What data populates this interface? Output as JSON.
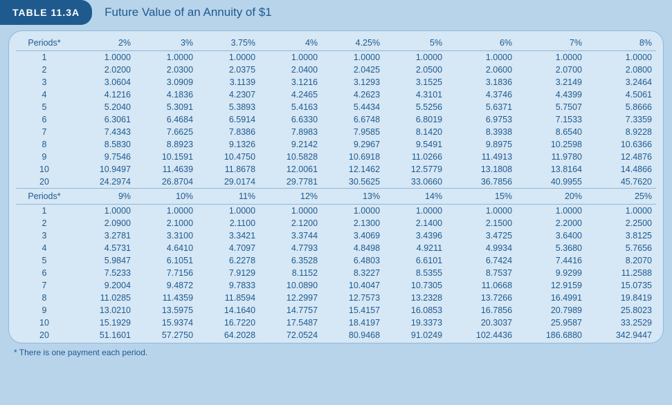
{
  "header": {
    "tab_label": "TABLE 11.3A",
    "title": "Future Value of an Annuity of $1"
  },
  "table1": {
    "periods_label": "Periods*",
    "cols": [
      "2%",
      "3%",
      "3.75%",
      "4%",
      "4.25%",
      "5%",
      "6%",
      "7%",
      "8%"
    ],
    "periods": [
      "1",
      "2",
      "3",
      "4",
      "5",
      "6",
      "7",
      "8",
      "9",
      "10",
      "20"
    ],
    "rows": [
      [
        "1.0000",
        "1.0000",
        "1.0000",
        "1.0000",
        "1.0000",
        "1.0000",
        "1.0000",
        "1.0000",
        "1.0000"
      ],
      [
        "2.0200",
        "2.0300",
        "2.0375",
        "2.0400",
        "2.0425",
        "2.0500",
        "2.0600",
        "2.0700",
        "2.0800"
      ],
      [
        "3.0604",
        "3.0909",
        "3.1139",
        "3.1216",
        "3.1293",
        "3.1525",
        "3.1836",
        "3.2149",
        "3.2464"
      ],
      [
        "4.1216",
        "4.1836",
        "4.2307",
        "4.2465",
        "4.2623",
        "4.3101",
        "4.3746",
        "4.4399",
        "4.5061"
      ],
      [
        "5.2040",
        "5.3091",
        "5.3893",
        "5.4163",
        "5.4434",
        "5.5256",
        "5.6371",
        "5.7507",
        "5.8666"
      ],
      [
        "6.3061",
        "6.4684",
        "6.5914",
        "6.6330",
        "6.6748",
        "6.8019",
        "6.9753",
        "7.1533",
        "7.3359"
      ],
      [
        "7.4343",
        "7.6625",
        "7.8386",
        "7.8983",
        "7.9585",
        "8.1420",
        "8.3938",
        "8.6540",
        "8.9228"
      ],
      [
        "8.5830",
        "8.8923",
        "9.1326",
        "9.2142",
        "9.2967",
        "9.5491",
        "9.8975",
        "10.2598",
        "10.6366"
      ],
      [
        "9.7546",
        "10.1591",
        "10.4750",
        "10.5828",
        "10.6918",
        "11.0266",
        "11.4913",
        "11.9780",
        "12.4876"
      ],
      [
        "10.9497",
        "11.4639",
        "11.8678",
        "12.0061",
        "12.1462",
        "12.5779",
        "13.1808",
        "13.8164",
        "14.4866"
      ],
      [
        "24.2974",
        "26.8704",
        "29.0174",
        "29.7781",
        "30.5625",
        "33.0660",
        "36.7856",
        "40.9955",
        "45.7620"
      ]
    ]
  },
  "table2": {
    "periods_label": "Periods*",
    "cols": [
      "9%",
      "10%",
      "11%",
      "12%",
      "13%",
      "14%",
      "15%",
      "20%",
      "25%"
    ],
    "periods": [
      "1",
      "2",
      "3",
      "4",
      "5",
      "6",
      "7",
      "8",
      "9",
      "10",
      "20"
    ],
    "rows": [
      [
        "1.0000",
        "1.0000",
        "1.0000",
        "1.0000",
        "1.0000",
        "1.0000",
        "1.0000",
        "1.0000",
        "1.0000"
      ],
      [
        "2.0900",
        "2.1000",
        "2.1100",
        "2.1200",
        "2.1300",
        "2.1400",
        "2.1500",
        "2.2000",
        "2.2500"
      ],
      [
        "3.2781",
        "3.3100",
        "3.3421",
        "3.3744",
        "3.4069",
        "3.4396",
        "3.4725",
        "3.6400",
        "3.8125"
      ],
      [
        "4.5731",
        "4.6410",
        "4.7097",
        "4.7793",
        "4.8498",
        "4.9211",
        "4.9934",
        "5.3680",
        "5.7656"
      ],
      [
        "5.9847",
        "6.1051",
        "6.2278",
        "6.3528",
        "6.4803",
        "6.6101",
        "6.7424",
        "7.4416",
        "8.2070"
      ],
      [
        "7.5233",
        "7.7156",
        "7.9129",
        "8.1152",
        "8.3227",
        "8.5355",
        "8.7537",
        "9.9299",
        "11.2588"
      ],
      [
        "9.2004",
        "9.4872",
        "9.7833",
        "10.0890",
        "10.4047",
        "10.7305",
        "11.0668",
        "12.9159",
        "15.0735"
      ],
      [
        "11.0285",
        "11.4359",
        "11.8594",
        "12.2997",
        "12.7573",
        "13.2328",
        "13.7266",
        "16.4991",
        "19.8419"
      ],
      [
        "13.0210",
        "13.5975",
        "14.1640",
        "14.7757",
        "15.4157",
        "16.0853",
        "16.7856",
        "20.7989",
        "25.8023"
      ],
      [
        "15.1929",
        "15.9374",
        "16.7220",
        "17.5487",
        "18.4197",
        "19.3373",
        "20.3037",
        "25.9587",
        "33.2529"
      ],
      [
        "51.1601",
        "57.2750",
        "64.2028",
        "72.0524",
        "80.9468",
        "91.0249",
        "102.4436",
        "186.6880",
        "342.9447"
      ]
    ]
  },
  "footnote": "* There is one payment each period.",
  "colors": {
    "page_bg": "#b8d4eb",
    "panel_bg": "#d6e7f5",
    "tab_bg": "#1e5a8e",
    "text": "#1e5a8e",
    "border": "#8fb8d8"
  }
}
